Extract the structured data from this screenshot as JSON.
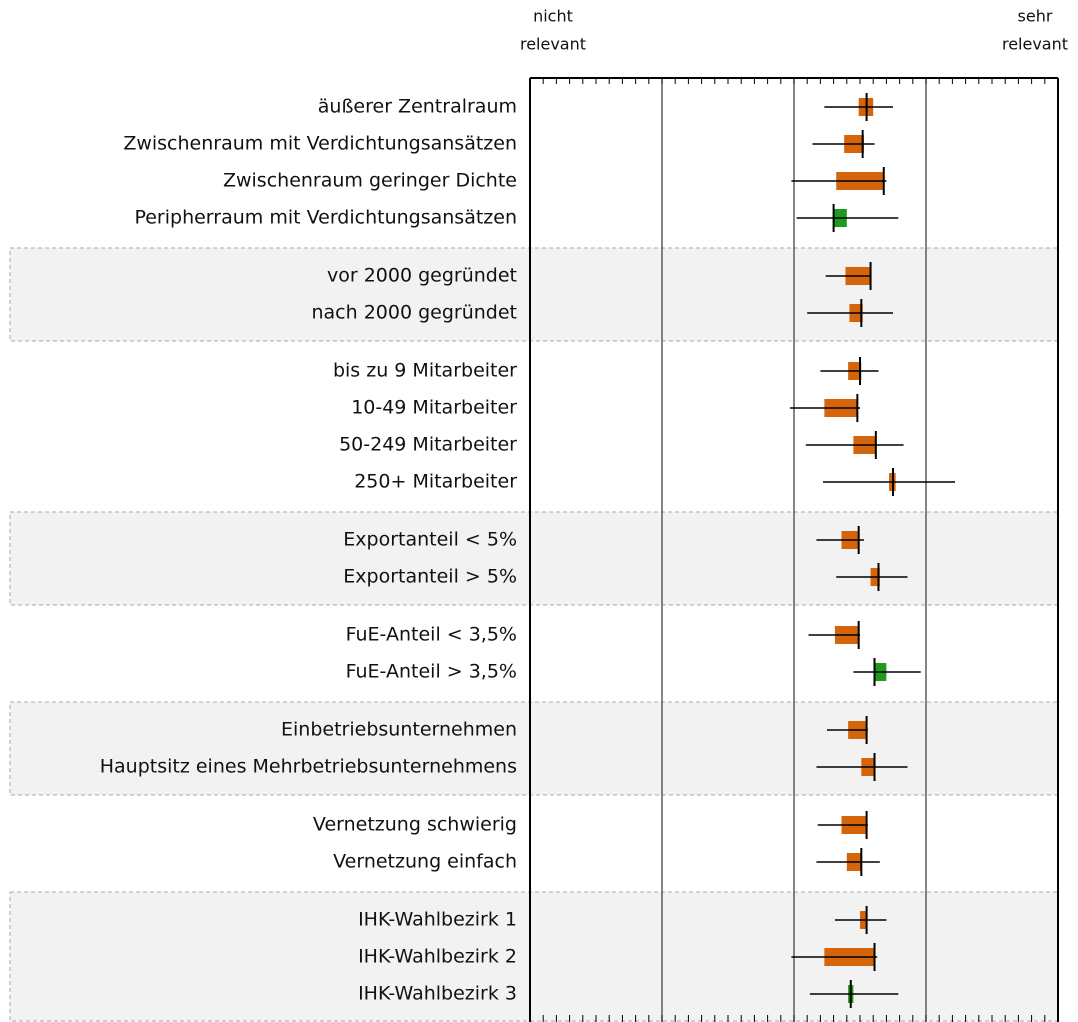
{
  "chart_data": {
    "type": "interval",
    "x_label_left": [
      "nicht",
      "relevant"
    ],
    "x_label_right": [
      "sehr",
      "relevant"
    ],
    "xlim": [
      1,
      5
    ],
    "xticks": [
      1,
      2,
      3,
      4,
      5
    ],
    "minor_tick_step": 0.1,
    "groups": [
      {
        "shaded": false,
        "rows": [
          {
            "label": "äußerer Zentralraum",
            "mean": 3.55,
            "bar": [
              3.49,
              3.6
            ],
            "ci": [
              3.23,
              3.75
            ],
            "color": "#d4650a"
          },
          {
            "label": "Zwischenraum mit Verdichtungsansätzen",
            "mean": 3.52,
            "bar": [
              3.38,
              3.53
            ],
            "ci": [
              3.14,
              3.61
            ],
            "color": "#d4650a"
          },
          {
            "label": "Zwischenraum geringer Dichte",
            "mean": 3.68,
            "bar": [
              3.32,
              3.68
            ],
            "ci": [
              2.98,
              3.7
            ],
            "color": "#d4650a"
          },
          {
            "label": "Peripherraum mit Verdichtungsansätzen",
            "mean": 3.3,
            "bar": [
              3.3,
              3.4
            ],
            "ci": [
              3.02,
              3.79
            ],
            "color": "#1c9a1c"
          }
        ]
      },
      {
        "shaded": true,
        "rows": [
          {
            "label": "vor 2000 gegründet",
            "mean": 3.58,
            "bar": [
              3.39,
              3.58
            ],
            "ci": [
              3.24,
              3.58
            ],
            "color": "#d4650a"
          },
          {
            "label": "nach 2000 gegründet",
            "mean": 3.51,
            "bar": [
              3.42,
              3.52
            ],
            "ci": [
              3.1,
              3.75
            ],
            "color": "#d4650a"
          }
        ]
      },
      {
        "shaded": false,
        "rows": [
          {
            "label": "bis zu 9 Mitarbeiter",
            "mean": 3.5,
            "bar": [
              3.41,
              3.51
            ],
            "ci": [
              3.2,
              3.64
            ],
            "color": "#d4650a"
          },
          {
            "label": "10-49 Mitarbeiter",
            "mean": 3.48,
            "bar": [
              3.23,
              3.48
            ],
            "ci": [
              2.97,
              3.5
            ],
            "color": "#d4650a"
          },
          {
            "label": "50-249 Mitarbeiter",
            "mean": 3.62,
            "bar": [
              3.45,
              3.62
            ],
            "ci": [
              3.09,
              3.83
            ],
            "color": "#d4650a"
          },
          {
            "label": "250+ Mitarbeiter",
            "mean": 3.75,
            "bar": [
              3.72,
              3.77
            ],
            "ci": [
              3.22,
              4.22
            ],
            "color": "#d4650a"
          }
        ]
      },
      {
        "shaded": true,
        "rows": [
          {
            "label": "Exportanteil < 5%",
            "mean": 3.49,
            "bar": [
              3.36,
              3.49
            ],
            "ci": [
              3.17,
              3.53
            ],
            "color": "#d4650a"
          },
          {
            "label": "Exportanteil > 5%",
            "mean": 3.64,
            "bar": [
              3.58,
              3.65
            ],
            "ci": [
              3.32,
              3.86
            ],
            "color": "#d4650a"
          }
        ]
      },
      {
        "shaded": false,
        "rows": [
          {
            "label": "FuE-Anteil < 3,5%",
            "mean": 3.49,
            "bar": [
              3.31,
              3.49
            ],
            "ci": [
              3.11,
              3.5
            ],
            "color": "#d4650a"
          },
          {
            "label": "FuE-Anteil > 3,5%",
            "mean": 3.61,
            "bar": [
              3.61,
              3.7
            ],
            "ci": [
              3.45,
              3.96
            ],
            "color": "#1c9a1c"
          }
        ]
      },
      {
        "shaded": true,
        "rows": [
          {
            "label": "Einbetriebsunternehmen",
            "mean": 3.55,
            "bar": [
              3.41,
              3.55
            ],
            "ci": [
              3.25,
              3.56
            ],
            "color": "#d4650a"
          },
          {
            "label": "Hauptsitz eines Mehrbetriebsunternehmens",
            "mean": 3.61,
            "bar": [
              3.51,
              3.61
            ],
            "ci": [
              3.17,
              3.86
            ],
            "color": "#d4650a"
          }
        ]
      },
      {
        "shaded": false,
        "rows": [
          {
            "label": "Vernetzung schwierig",
            "mean": 3.55,
            "bar": [
              3.36,
              3.55
            ],
            "ci": [
              3.18,
              3.56
            ],
            "color": "#d4650a"
          },
          {
            "label": "Vernetzung einfach",
            "mean": 3.51,
            "bar": [
              3.4,
              3.51
            ],
            "ci": [
              3.17,
              3.65
            ],
            "color": "#d4650a"
          }
        ]
      },
      {
        "shaded": true,
        "rows": [
          {
            "label": "IHK-Wahlbezirk 1",
            "mean": 3.55,
            "bar": [
              3.5,
              3.55
            ],
            "ci": [
              3.31,
              3.7
            ],
            "color": "#d4650a"
          },
          {
            "label": "IHK-Wahlbezirk 2",
            "mean": 3.61,
            "bar": [
              3.23,
              3.61
            ],
            "ci": [
              2.98,
              3.63
            ],
            "color": "#d4650a"
          },
          {
            "label": "IHK-Wahlbezirk 3",
            "mean": 3.43,
            "bar": [
              3.41,
              3.45
            ],
            "ci": [
              3.12,
              3.79
            ],
            "color": "#1c9a1c"
          }
        ]
      }
    ]
  }
}
